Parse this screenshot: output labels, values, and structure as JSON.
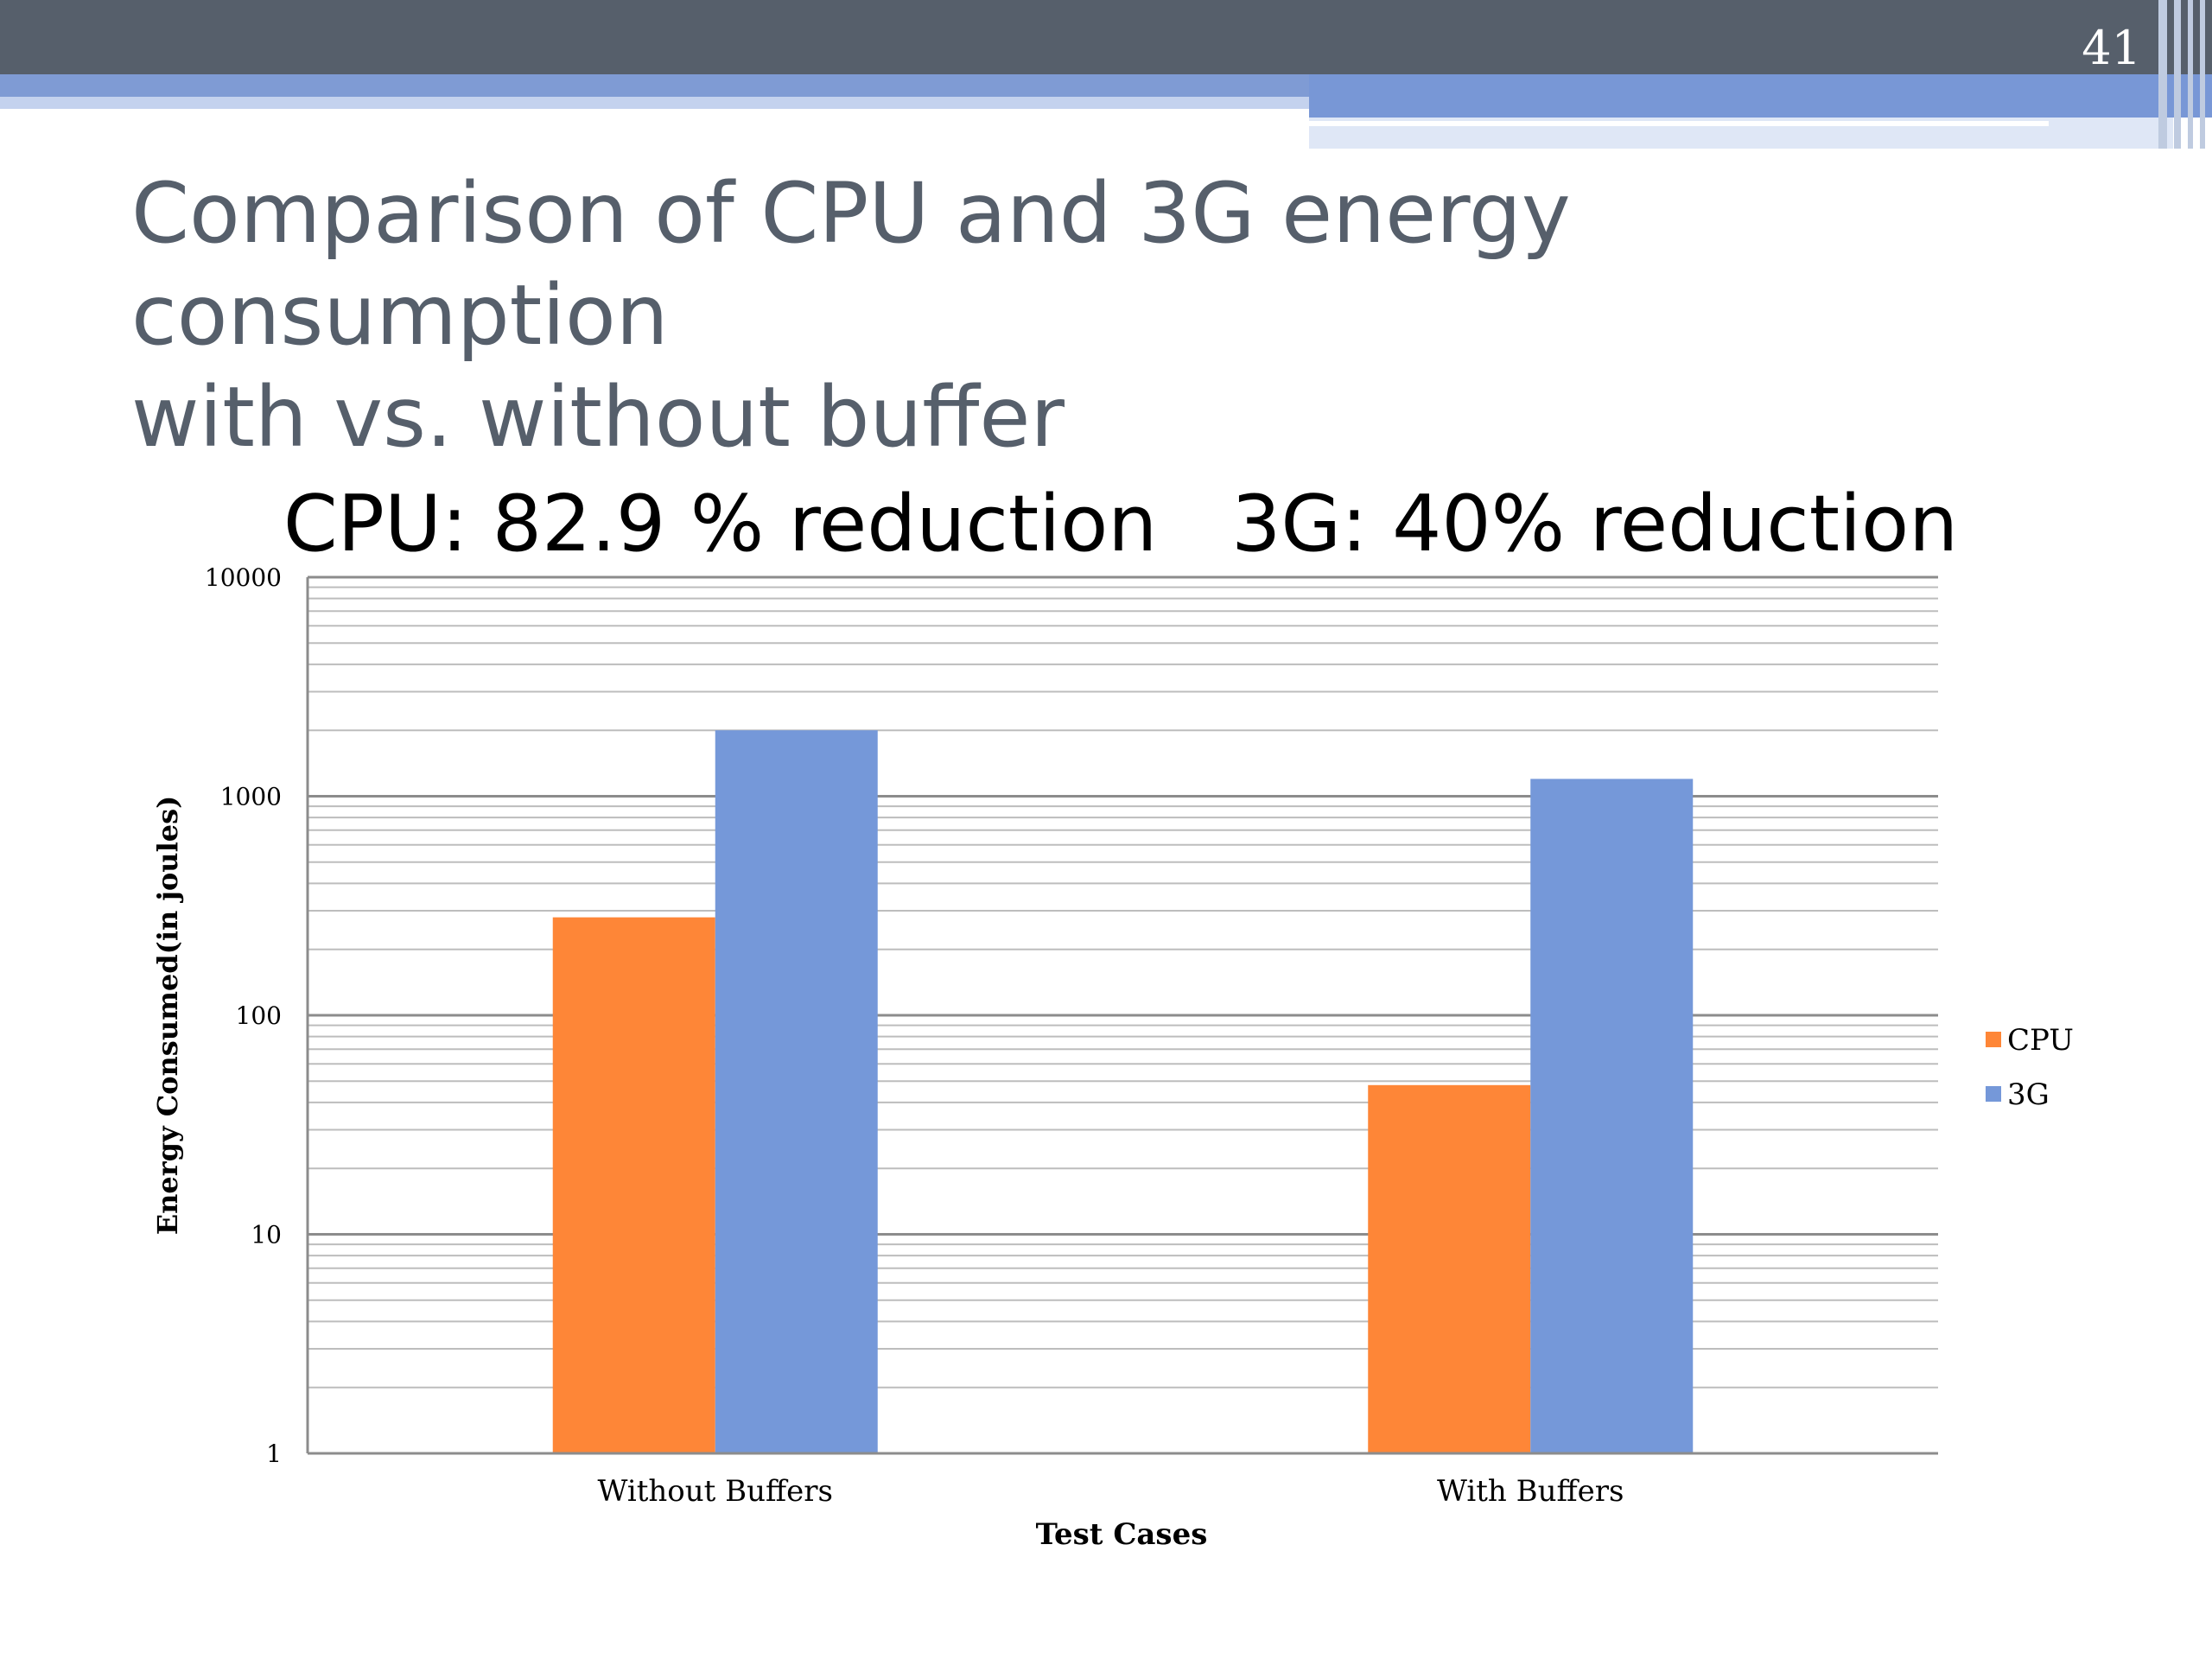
{
  "slide": {
    "number": "41",
    "title_line1": "Comparison of CPU and 3G energy consumption",
    "title_line2": "with vs. without buffer"
  },
  "colors": {
    "cpu": "#fe8637",
    "g3": "#7598d9",
    "title": "#565f6b"
  },
  "chart_data": {
    "type": "bar",
    "title": "CPU: 82.9 % reduction   3G: 40% reduction",
    "xlabel": "Test Cases",
    "ylabel": "Energy Consumed(in joules)",
    "categories": [
      "Without Buffers",
      "With Buffers"
    ],
    "series": [
      {
        "name": "CPU",
        "values": [
          280,
          48
        ]
      },
      {
        "name": "3G",
        "values": [
          2000,
          1200
        ]
      }
    ],
    "yscale": "log",
    "ylim": [
      1,
      10000
    ],
    "yticks": [
      "1",
      "10",
      "100",
      "1000",
      "10000"
    ],
    "grid": true,
    "legend": "right"
  }
}
